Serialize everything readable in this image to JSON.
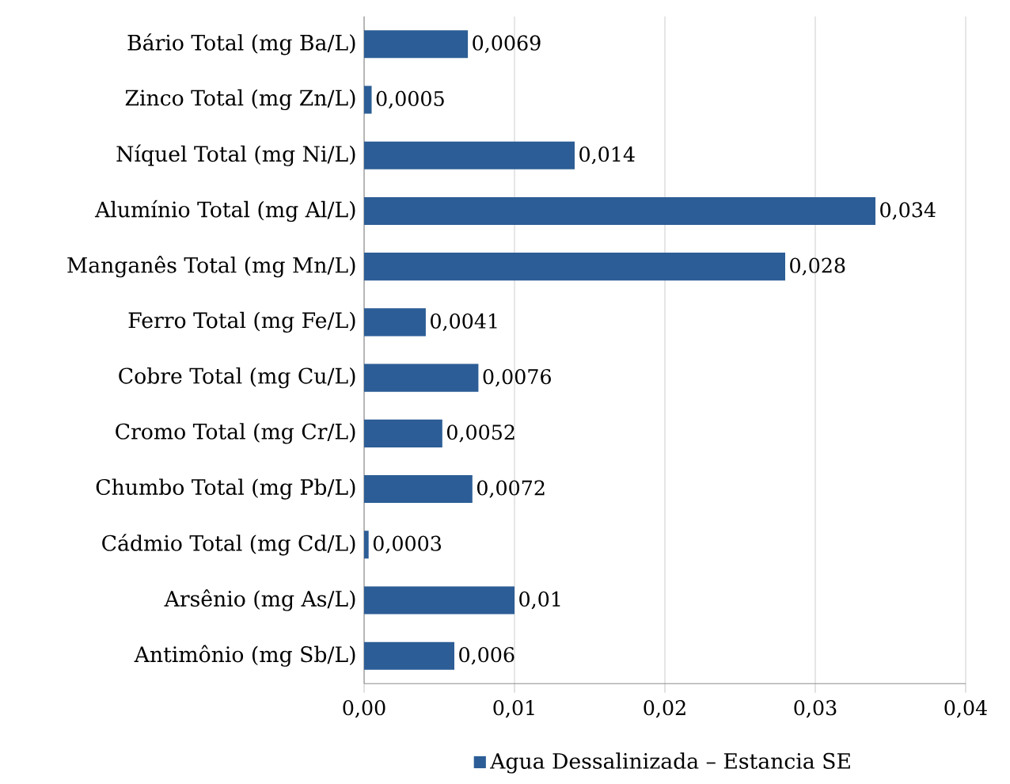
{
  "chart_data": {
    "type": "bar",
    "orientation": "horizontal",
    "categories": [
      "Bário Total (mg Ba/L)",
      "Zinco Total (mg Zn/L)",
      "Níquel Total (mg Ni/L)",
      "Alumínio Total (mg Al/L)",
      "Manganês Total (mg Mn/L)",
      "Ferro Total (mg Fe/L)",
      "Cobre Total (mg Cu/L)",
      "Cromo Total (mg Cr/L)",
      "Chumbo Total (mg Pb/L)",
      "Cádmio Total (mg Cd/L)",
      "Arsênio (mg As/L)",
      "Antimônio (mg Sb/L)"
    ],
    "series": [
      {
        "name": "Agua Dessalinizada – Estancia SE",
        "color": "#2c5d96",
        "values": [
          0.0069,
          0.0005,
          0.014,
          0.034,
          0.028,
          0.0041,
          0.0076,
          0.0052,
          0.0072,
          0.0003,
          0.01,
          0.006
        ],
        "value_labels": [
          "0,0069",
          "0,0005",
          "0,014",
          "0,034",
          "0,028",
          "0,0041",
          "0,0076",
          "0,0052",
          "0,0072",
          "0,0003",
          "0,01",
          "0,006"
        ]
      }
    ],
    "xlim": [
      0,
      0.04
    ],
    "xticks": [
      {
        "value": 0,
        "label": "0,00"
      },
      {
        "value": 0.01,
        "label": "0,01"
      },
      {
        "value": 0.02,
        "label": "0,02"
      },
      {
        "value": 0.03,
        "label": "0,03"
      },
      {
        "value": 0.04,
        "label": "0,04"
      }
    ],
    "grid": "x",
    "legend": "bottom"
  }
}
